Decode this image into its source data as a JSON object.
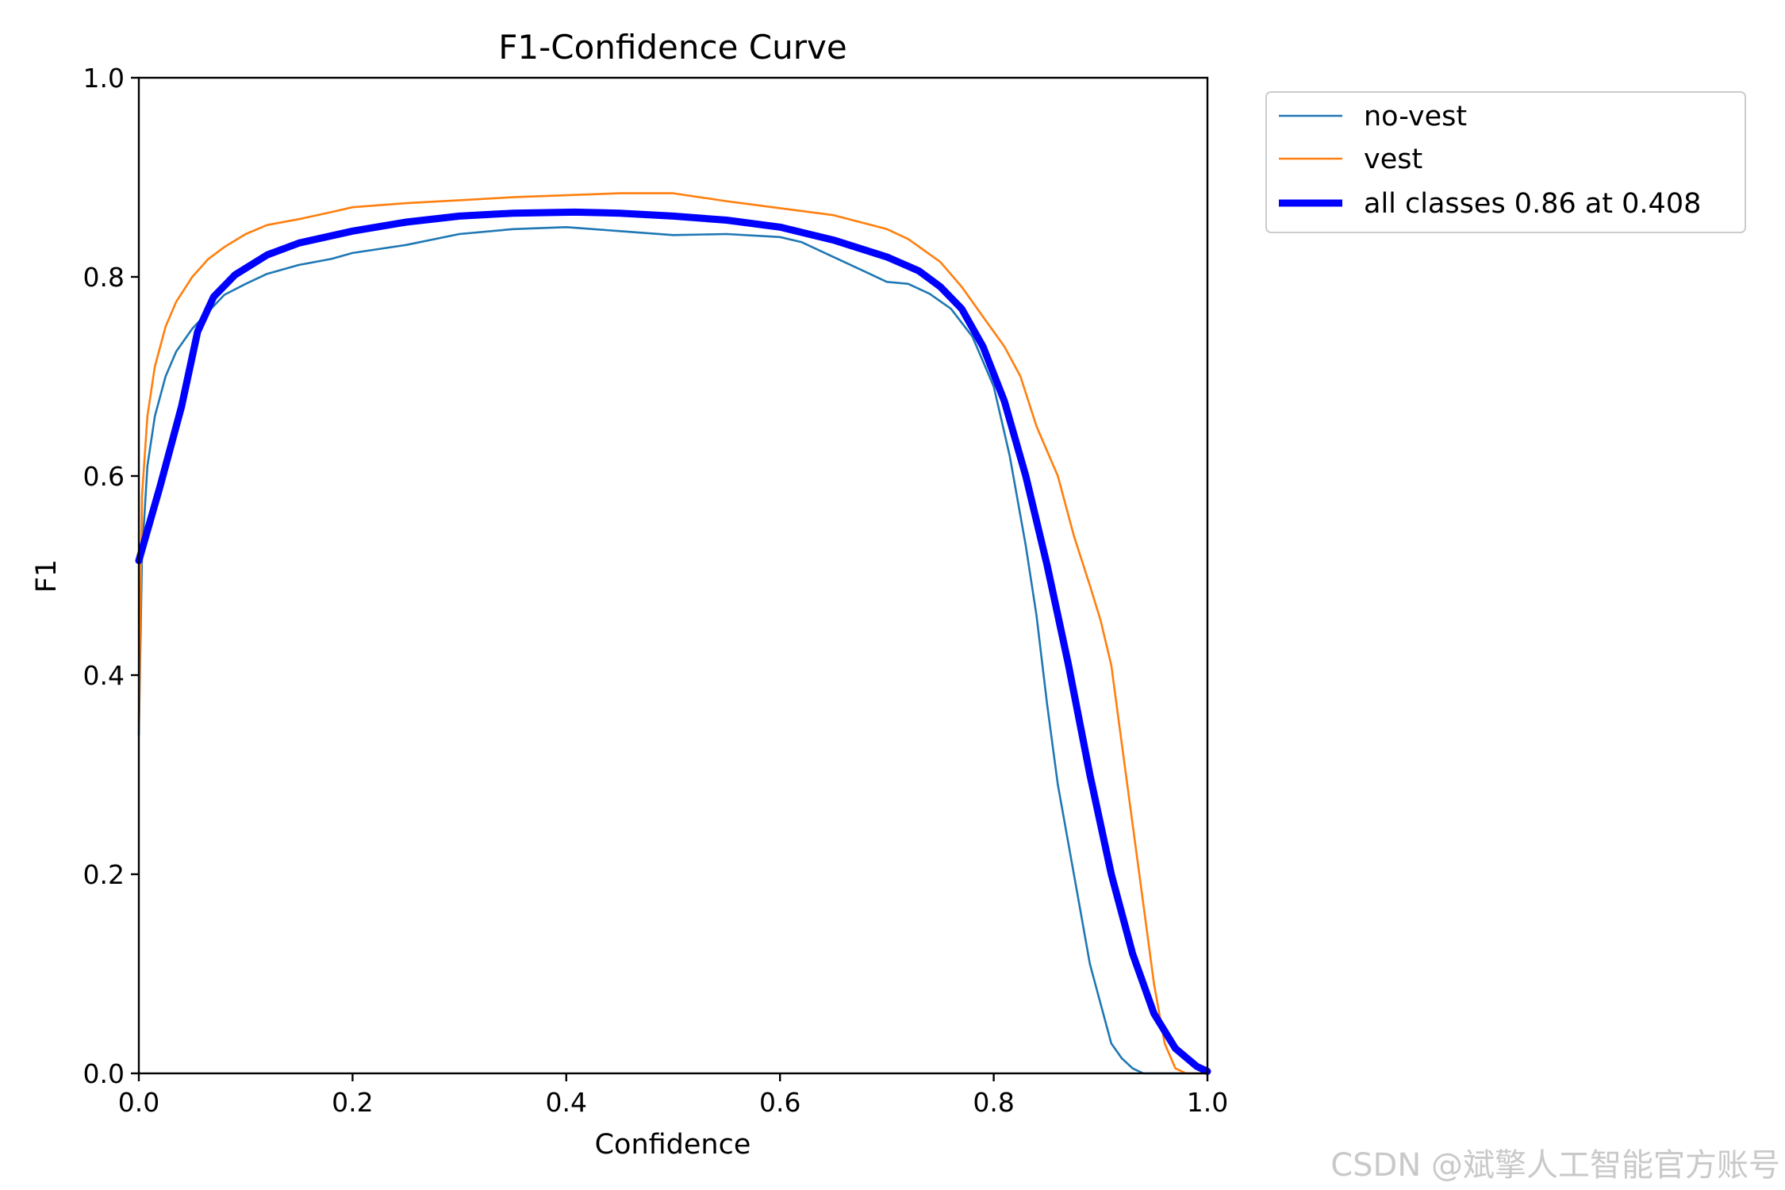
{
  "chart_data": {
    "type": "line",
    "title": "F1-Confidence Curve",
    "xlabel": "Confidence",
    "ylabel": "F1",
    "xlim": [
      0,
      1
    ],
    "ylim": [
      0,
      1
    ],
    "xticks": [
      "0.0",
      "0.2",
      "0.4",
      "0.6",
      "0.8",
      "1.0"
    ],
    "yticks": [
      "0.0",
      "0.2",
      "0.4",
      "0.6",
      "0.8",
      "1.0"
    ],
    "legend_position": "outside-top-right",
    "series": [
      {
        "name": "no-vest",
        "color": "#1f77b4",
        "width": "thin",
        "points": [
          [
            0.0,
            0.34
          ],
          [
            0.003,
            0.52
          ],
          [
            0.008,
            0.61
          ],
          [
            0.015,
            0.66
          ],
          [
            0.025,
            0.7
          ],
          [
            0.035,
            0.725
          ],
          [
            0.05,
            0.748
          ],
          [
            0.065,
            0.765
          ],
          [
            0.08,
            0.782
          ],
          [
            0.1,
            0.793
          ],
          [
            0.12,
            0.803
          ],
          [
            0.15,
            0.812
          ],
          [
            0.18,
            0.818
          ],
          [
            0.2,
            0.824
          ],
          [
            0.25,
            0.832
          ],
          [
            0.3,
            0.843
          ],
          [
            0.35,
            0.848
          ],
          [
            0.4,
            0.85
          ],
          [
            0.45,
            0.846
          ],
          [
            0.5,
            0.842
          ],
          [
            0.55,
            0.843
          ],
          [
            0.6,
            0.84
          ],
          [
            0.62,
            0.835
          ],
          [
            0.65,
            0.82
          ],
          [
            0.68,
            0.805
          ],
          [
            0.7,
            0.795
          ],
          [
            0.72,
            0.793
          ],
          [
            0.74,
            0.783
          ],
          [
            0.76,
            0.768
          ],
          [
            0.78,
            0.74
          ],
          [
            0.8,
            0.69
          ],
          [
            0.815,
            0.62
          ],
          [
            0.83,
            0.53
          ],
          [
            0.84,
            0.46
          ],
          [
            0.85,
            0.37
          ],
          [
            0.86,
            0.29
          ],
          [
            0.87,
            0.23
          ],
          [
            0.88,
            0.17
          ],
          [
            0.89,
            0.11
          ],
          [
            0.9,
            0.07
          ],
          [
            0.91,
            0.03
          ],
          [
            0.92,
            0.015
          ],
          [
            0.93,
            0.005
          ],
          [
            0.94,
            0.0
          ],
          [
            1.0,
            0.0
          ]
        ]
      },
      {
        "name": "vest",
        "color": "#ff7f0e",
        "width": "thin",
        "points": [
          [
            0.0,
            0.35
          ],
          [
            0.003,
            0.58
          ],
          [
            0.008,
            0.66
          ],
          [
            0.015,
            0.71
          ],
          [
            0.025,
            0.75
          ],
          [
            0.035,
            0.775
          ],
          [
            0.05,
            0.8
          ],
          [
            0.065,
            0.818
          ],
          [
            0.08,
            0.83
          ],
          [
            0.1,
            0.843
          ],
          [
            0.12,
            0.852
          ],
          [
            0.15,
            0.858
          ],
          [
            0.18,
            0.865
          ],
          [
            0.2,
            0.87
          ],
          [
            0.25,
            0.874
          ],
          [
            0.3,
            0.877
          ],
          [
            0.35,
            0.88
          ],
          [
            0.4,
            0.882
          ],
          [
            0.45,
            0.884
          ],
          [
            0.5,
            0.884
          ],
          [
            0.55,
            0.876
          ],
          [
            0.6,
            0.869
          ],
          [
            0.65,
            0.862
          ],
          [
            0.7,
            0.848
          ],
          [
            0.72,
            0.838
          ],
          [
            0.75,
            0.815
          ],
          [
            0.77,
            0.79
          ],
          [
            0.79,
            0.76
          ],
          [
            0.81,
            0.73
          ],
          [
            0.825,
            0.7
          ],
          [
            0.84,
            0.65
          ],
          [
            0.86,
            0.6
          ],
          [
            0.875,
            0.54
          ],
          [
            0.89,
            0.49
          ],
          [
            0.9,
            0.455
          ],
          [
            0.91,
            0.41
          ],
          [
            0.92,
            0.33
          ],
          [
            0.93,
            0.25
          ],
          [
            0.94,
            0.17
          ],
          [
            0.95,
            0.09
          ],
          [
            0.96,
            0.03
          ],
          [
            0.97,
            0.005
          ],
          [
            0.98,
            0.0
          ],
          [
            1.0,
            0.0
          ]
        ]
      },
      {
        "name": "all classes 0.86 at 0.408",
        "color": "#0000ff",
        "width": "thick",
        "points": [
          [
            0.0,
            0.515
          ],
          [
            0.02,
            0.59
          ],
          [
            0.04,
            0.67
          ],
          [
            0.055,
            0.745
          ],
          [
            0.07,
            0.78
          ],
          [
            0.09,
            0.802
          ],
          [
            0.12,
            0.822
          ],
          [
            0.15,
            0.834
          ],
          [
            0.2,
            0.846
          ],
          [
            0.25,
            0.855
          ],
          [
            0.3,
            0.861
          ],
          [
            0.35,
            0.864
          ],
          [
            0.408,
            0.865
          ],
          [
            0.45,
            0.864
          ],
          [
            0.5,
            0.861
          ],
          [
            0.55,
            0.857
          ],
          [
            0.6,
            0.85
          ],
          [
            0.65,
            0.837
          ],
          [
            0.7,
            0.82
          ],
          [
            0.73,
            0.806
          ],
          [
            0.75,
            0.79
          ],
          [
            0.77,
            0.768
          ],
          [
            0.79,
            0.73
          ],
          [
            0.81,
            0.675
          ],
          [
            0.83,
            0.6
          ],
          [
            0.85,
            0.51
          ],
          [
            0.87,
            0.41
          ],
          [
            0.89,
            0.3
          ],
          [
            0.91,
            0.2
          ],
          [
            0.93,
            0.12
          ],
          [
            0.95,
            0.06
          ],
          [
            0.97,
            0.025
          ],
          [
            0.99,
            0.007
          ],
          [
            1.0,
            0.002
          ]
        ]
      }
    ]
  },
  "watermark": "CSDN @斌擎人工智能官方账号"
}
